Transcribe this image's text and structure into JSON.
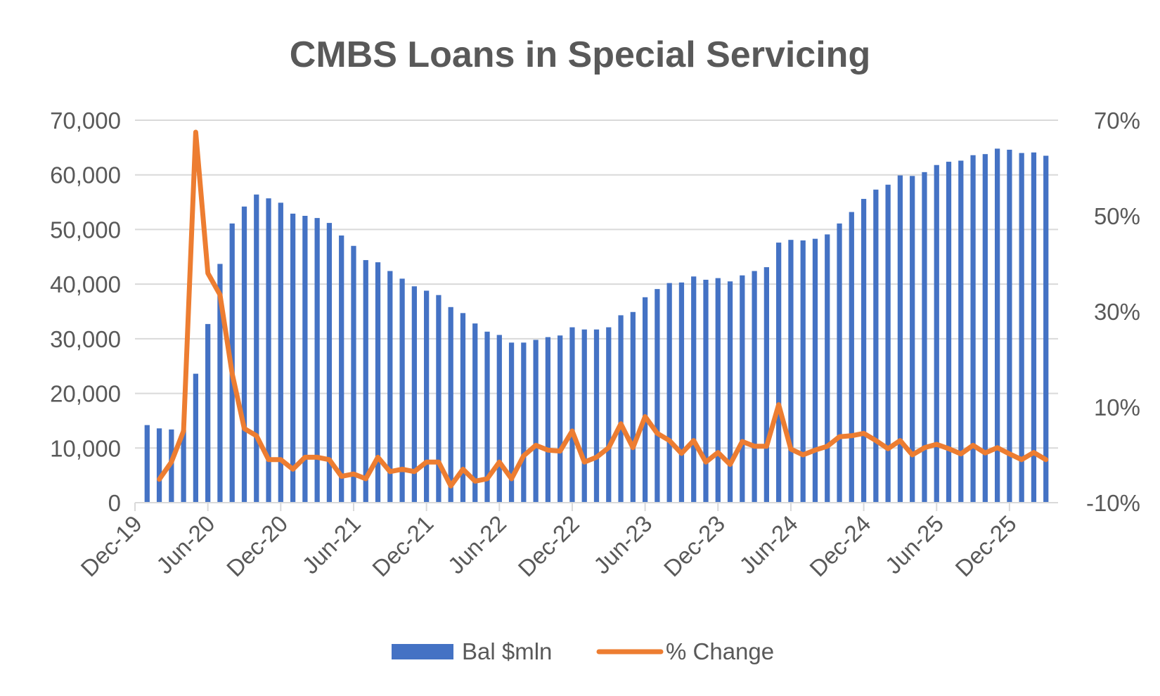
{
  "chart_data": {
    "type": "bar",
    "title": "CMBS Loans in Special Servicing",
    "xlabel": "",
    "ylabel": "",
    "y2label": "",
    "ylim": [
      0,
      70000
    ],
    "y2lim": [
      -0.1,
      0.7
    ],
    "y_ticks": [
      "0",
      "10,000",
      "20,000",
      "30,000",
      "40,000",
      "50,000",
      "60,000",
      "70,000"
    ],
    "y2_ticks": [
      "-10%",
      "10%",
      "30%",
      "50%",
      "70%"
    ],
    "x_tick_labels": [
      "Dec-19",
      "Jun-20",
      "Dec-20",
      "Jun-21",
      "Dec-21",
      "Jun-22",
      "Dec-22",
      "Jun-23",
      "Dec-23",
      "Jun-24",
      "Dec-24",
      "Jun-25",
      "Dec-25"
    ],
    "grid": true,
    "legend_position": "bottom",
    "colors": {
      "bar": "#4472C4",
      "line": "#ED7D31",
      "grid": "#D9D9D9",
      "text": "#595959"
    },
    "categories": [
      "Jan-20",
      "Feb-20",
      "Mar-20",
      "Apr-20",
      "May-20",
      "Jun-20",
      "Jul-20",
      "Aug-20",
      "Sep-20",
      "Oct-20",
      "Nov-20",
      "Dec-20",
      "Jan-21",
      "Feb-21",
      "Mar-21",
      "Apr-21",
      "May-21",
      "Jun-21",
      "Jul-21",
      "Aug-21",
      "Sep-21",
      "Oct-21",
      "Nov-21",
      "Dec-21",
      "Jan-22",
      "Feb-22",
      "Mar-22",
      "Apr-22",
      "May-22",
      "Jun-22",
      "Jul-22",
      "Aug-22",
      "Sep-22",
      "Oct-22",
      "Nov-22",
      "Dec-22",
      "Jan-23",
      "Feb-23",
      "Mar-23",
      "Apr-23",
      "May-23",
      "Jun-23",
      "Jul-23",
      "Aug-23",
      "Sep-23",
      "Oct-23",
      "Nov-23",
      "Dec-23",
      "Jan-24",
      "Feb-24",
      "Mar-24",
      "Apr-24",
      "May-24",
      "Jun-24",
      "Jul-24",
      "Aug-24",
      "Sep-24",
      "Oct-24",
      "Nov-24",
      "Dec-24",
      "Jan-25",
      "Feb-25",
      "Mar-25",
      "Apr-25",
      "May-25",
      "Jun-25",
      "Jul-25",
      "Aug-25",
      "Sep-25",
      "Oct-25",
      "Nov-25",
      "Dec-25",
      "Jan-26",
      "Feb-26",
      "Mar-26"
    ],
    "series": [
      {
        "name": "Bal $mln",
        "type": "bar",
        "axis": "left",
        "values": [
          14200,
          13600,
          13400,
          13300,
          23600,
          32700,
          43700,
          51100,
          54200,
          56400,
          55700,
          54900,
          52900,
          52500,
          52100,
          51200,
          48900,
          47000,
          44400,
          44000,
          42400,
          41000,
          39600,
          38800,
          38000,
          35800,
          34700,
          32800,
          31300,
          30700,
          29300,
          29300,
          29800,
          30300,
          30600,
          32100,
          31700,
          31700,
          32100,
          34300,
          34900,
          37600,
          39100,
          40200,
          40300,
          41400,
          40800,
          41100,
          40500,
          41600,
          42400,
          43100,
          47600,
          48100,
          48000,
          48300,
          49100,
          51100,
          53200,
          55600,
          57300,
          58200,
          59900,
          59800,
          60500,
          61800,
          62400,
          62600,
          63600,
          63800,
          64800,
          64600,
          64000,
          64100,
          63500
        ]
      },
      {
        "name": "% Change",
        "type": "line",
        "axis": "right",
        "values": [
          null,
          -0.051,
          -0.015,
          0.05,
          0.675,
          0.38,
          0.335,
          0.17,
          0.055,
          0.04,
          -0.01,
          -0.01,
          -0.03,
          -0.005,
          -0.005,
          -0.01,
          -0.045,
          -0.04,
          -0.05,
          -0.005,
          -0.035,
          -0.03,
          -0.035,
          -0.015,
          -0.015,
          -0.065,
          -0.03,
          -0.055,
          -0.05,
          -0.015,
          -0.05,
          -0.002,
          0.02,
          0.01,
          0.008,
          0.05,
          -0.015,
          -0.005,
          0.015,
          0.065,
          0.015,
          0.08,
          0.045,
          0.03,
          0.003,
          0.03,
          -0.015,
          0.005,
          -0.02,
          0.028,
          0.018,
          0.018,
          0.105,
          0.012,
          0.0,
          0.01,
          0.018,
          0.038,
          0.04,
          0.045,
          0.03,
          0.013,
          0.03,
          0.0,
          0.015,
          0.022,
          0.013,
          0.002,
          0.02,
          0.004,
          0.015,
          0.002,
          -0.01,
          0.005,
          -0.01
        ]
      }
    ]
  }
}
